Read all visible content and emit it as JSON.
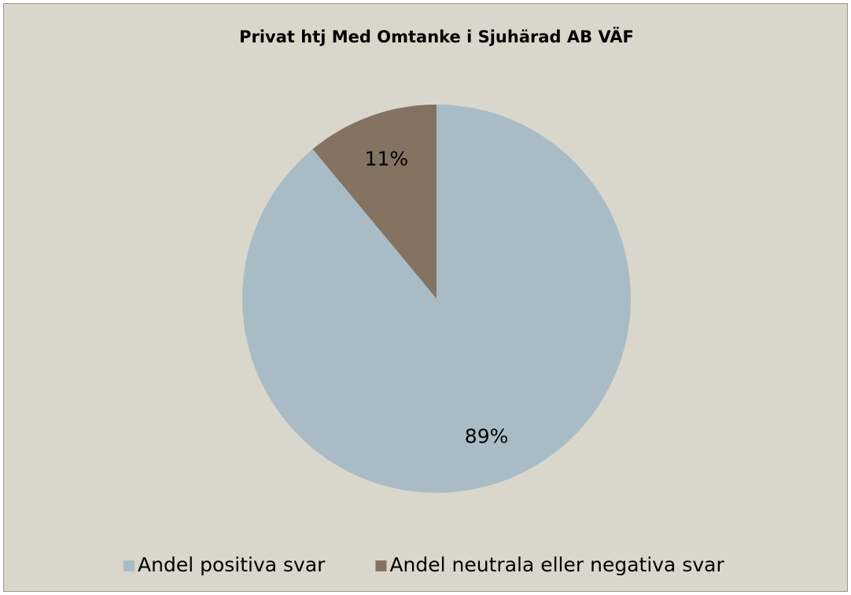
{
  "chart_data": {
    "type": "pie",
    "title": "Privat htj Med Omtanke i Sjuhärad AB VÄF",
    "categories": [
      "Andel positiva svar",
      "Andel neutrala eller negativa svar"
    ],
    "values": [
      89,
      11
    ],
    "value_labels": [
      "89%",
      "11%"
    ],
    "colors": [
      "#a9bcc6",
      "#857361"
    ],
    "legend": "bottom"
  }
}
